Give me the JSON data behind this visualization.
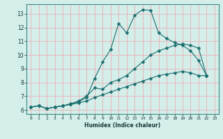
{
  "title": "",
  "xlabel": "Humidex (Indice chaleur)",
  "ylabel": "",
  "bg_color": "#d4eeea",
  "grid_color": "#e8b8bc",
  "line_color": "#1a6e6e",
  "marker": "D",
  "markersize": 2.5,
  "linewidth": 0.8,
  "xlim": [
    -0.5,
    23.5
  ],
  "ylim": [
    5.7,
    13.7
  ],
  "yticks": [
    6,
    7,
    8,
    9,
    10,
    11,
    12,
    13
  ],
  "xticks": [
    0,
    1,
    2,
    3,
    4,
    5,
    6,
    7,
    8,
    9,
    10,
    11,
    12,
    13,
    14,
    15,
    16,
    17,
    18,
    19,
    20,
    21,
    22,
    23
  ],
  "series1_x": [
    0,
    1,
    2,
    3,
    4,
    5,
    6,
    7,
    8,
    9,
    10,
    11,
    12,
    13,
    14,
    15,
    16,
    17,
    18,
    19,
    20,
    21,
    22
  ],
  "series1_y": [
    6.2,
    6.3,
    6.1,
    6.2,
    6.3,
    6.4,
    6.6,
    6.9,
    8.3,
    9.5,
    10.4,
    12.3,
    11.6,
    12.9,
    13.3,
    13.25,
    11.6,
    11.2,
    10.9,
    10.7,
    10.3,
    9.6,
    8.5
  ],
  "series2_x": [
    0,
    1,
    2,
    3,
    4,
    5,
    6,
    7,
    8,
    9,
    10,
    11,
    12,
    13,
    14,
    15,
    16,
    17,
    18,
    19,
    20,
    21,
    22
  ],
  "series2_y": [
    6.2,
    6.3,
    6.1,
    6.2,
    6.3,
    6.45,
    6.65,
    7.0,
    7.6,
    7.5,
    8.0,
    8.2,
    8.5,
    9.0,
    9.5,
    10.0,
    10.3,
    10.5,
    10.7,
    10.8,
    10.7,
    10.5,
    8.5
  ],
  "series3_x": [
    0,
    1,
    2,
    3,
    4,
    5,
    6,
    7,
    8,
    9,
    10,
    11,
    12,
    13,
    14,
    15,
    16,
    17,
    18,
    19,
    20,
    21,
    22
  ],
  "series3_y": [
    6.2,
    6.3,
    6.1,
    6.2,
    6.3,
    6.4,
    6.5,
    6.65,
    6.9,
    7.1,
    7.3,
    7.5,
    7.7,
    7.9,
    8.1,
    8.3,
    8.5,
    8.6,
    8.7,
    8.8,
    8.7,
    8.5,
    8.5
  ]
}
